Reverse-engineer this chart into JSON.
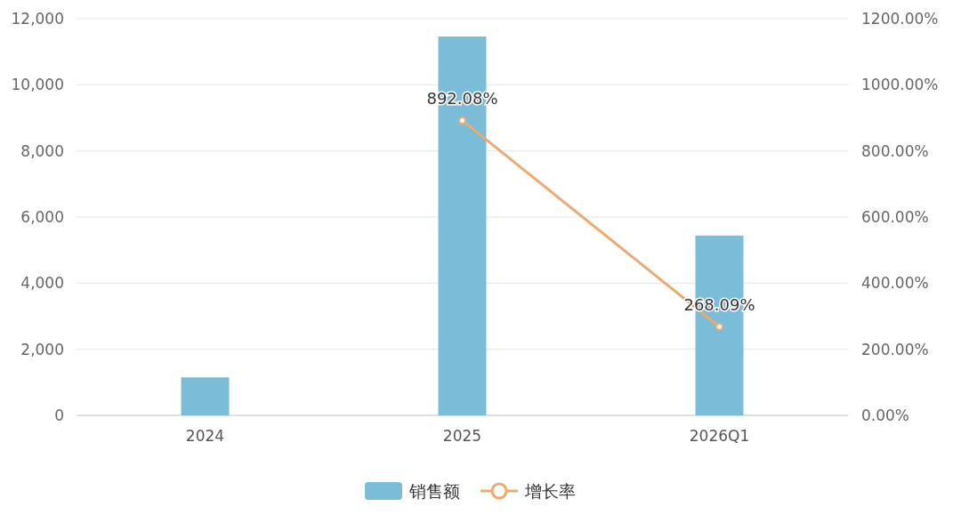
{
  "chart_data": {
    "type": "bar",
    "categories": [
      "2024",
      "2025",
      "2026Q1"
    ],
    "series": [
      {
        "name": "销售额",
        "color": "#7bbdd9",
        "values": [
          1150,
          11460,
          5440
        ]
      },
      {
        "name": "增长率",
        "type": "line",
        "axis": "y2",
        "color": "#eeaa6c",
        "marker": "circle",
        "values": [
          null,
          892.08,
          268.09
        ],
        "value_labels": [
          null,
          "892.08%",
          "268.09%"
        ]
      }
    ],
    "ylim": [
      0,
      12000
    ],
    "yticks": [
      {
        "value": 0,
        "label": "0"
      },
      {
        "value": 2000,
        "label": "2,000"
      },
      {
        "value": 4000,
        "label": "4,000"
      },
      {
        "value": 6000,
        "label": "6,000"
      },
      {
        "value": 8000,
        "label": "8,000"
      },
      {
        "value": 10000,
        "label": "10,000"
      },
      {
        "value": 12000,
        "label": "12,000"
      }
    ],
    "y2lim": [
      0,
      1200
    ],
    "y2ticks": [
      {
        "value": 0,
        "label": "0.00%"
      },
      {
        "value": 200,
        "label": "200.00%"
      },
      {
        "value": 400,
        "label": "400.00%"
      },
      {
        "value": 600,
        "label": "600.00%"
      },
      {
        "value": 800,
        "label": "800.00%"
      },
      {
        "value": 1000,
        "label": "1000.00%"
      },
      {
        "value": 1200,
        "label": "1200.00%"
      }
    ],
    "grid": "y",
    "legend": "bottom"
  }
}
